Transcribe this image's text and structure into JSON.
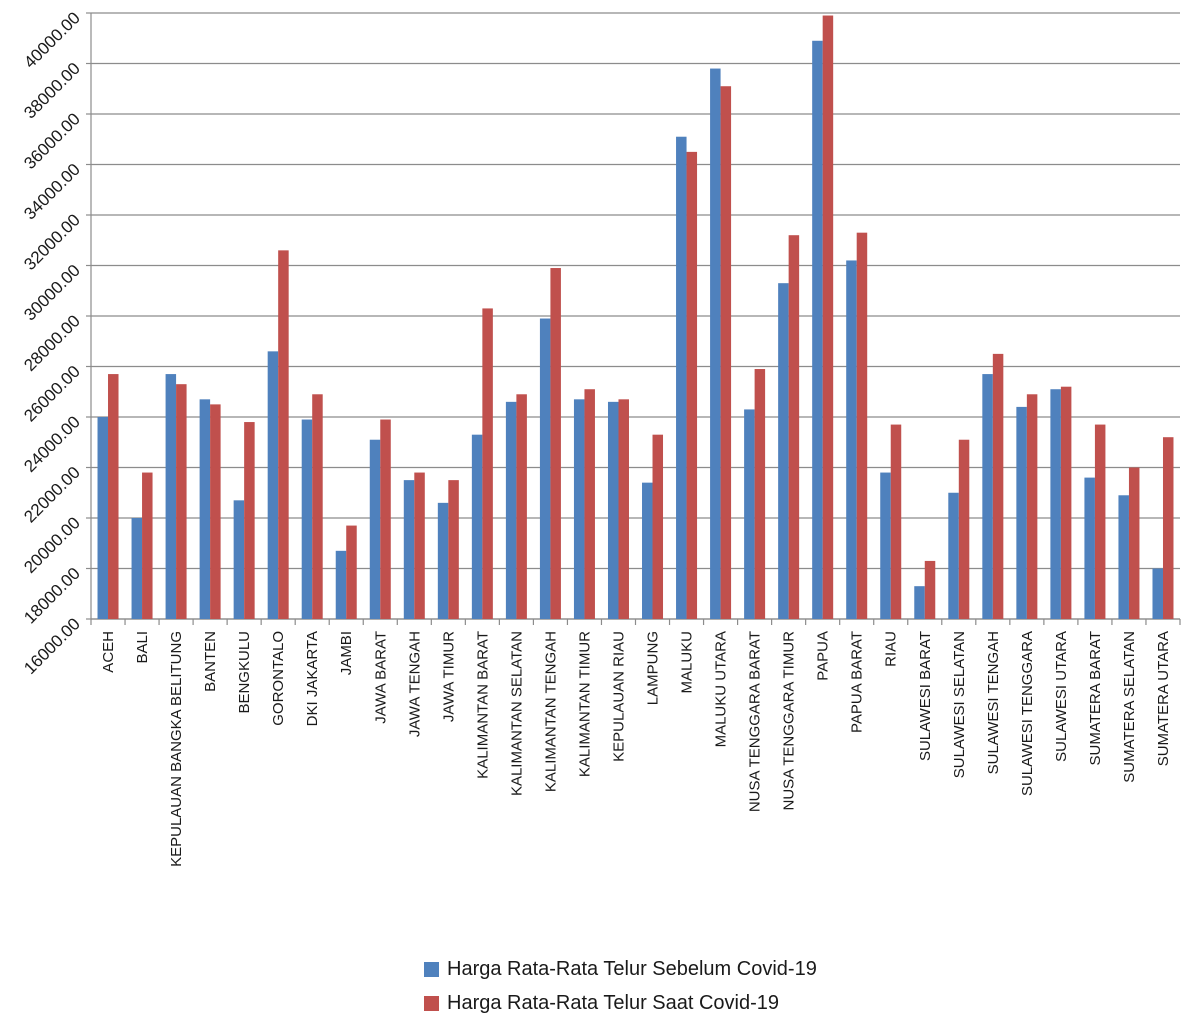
{
  "chart_data": {
    "type": "bar",
    "title": "",
    "xlabel": "",
    "ylabel": "",
    "ylim": [
      16000,
      40000
    ],
    "y_ticks": [
      "16000.00",
      "18000.00",
      "20000.00",
      "22000.00",
      "24000.00",
      "26000.00",
      "28000.00",
      "30000.00",
      "32000.00",
      "34000.00",
      "36000.00",
      "38000.00",
      "40000.00"
    ],
    "y_tick_values": [
      16000,
      18000,
      20000,
      22000,
      24000,
      26000,
      28000,
      30000,
      32000,
      34000,
      36000,
      38000,
      40000
    ],
    "grid": true,
    "legend_position": "bottom",
    "categories": [
      "ACEH",
      "BALI",
      "KEPULAUAN BANGKA BELITUNG",
      "BANTEN",
      "BENGKULU",
      "GORONTALO",
      "DKI JAKARTA",
      "JAMBI",
      "JAWA BARAT",
      "JAWA TENGAH",
      "JAWA TIMUR",
      "KALIMANTAN BARAT",
      "KALIMANTAN SELATAN",
      "KALIMANTAN TENGAH",
      "KALIMANTAN TIMUR",
      "KEPULAUAN RIAU",
      "LAMPUNG",
      "MALUKU",
      "MALUKU UTARA",
      "NUSA TENGGARA BARAT",
      "NUSA TENGGARA TIMUR",
      "PAPUA",
      "PAPUA BARAT",
      "RIAU",
      "SULAWESI BARAT",
      "SULAWESI SELATAN",
      "SULAWESI TENGAH",
      "SULAWESI TENGGARA",
      "SULAWESI UTARA",
      "SUMATERA BARAT",
      "SUMATERA SELATAN",
      "SUMATERA UTARA"
    ],
    "series": [
      {
        "name": "Harga Rata-Rata Telur Sebelum Covid-19",
        "color": "#4F81BD",
        "values": [
          24000,
          20000,
          25700,
          24700,
          20700,
          26600,
          23900,
          18700,
          23100,
          21500,
          20600,
          23300,
          24600,
          27900,
          24700,
          24600,
          21400,
          35100,
          37800,
          24300,
          29300,
          38900,
          30200,
          21800,
          17300,
          21000,
          25700,
          24400,
          25100,
          21600,
          20900,
          18000
        ]
      },
      {
        "name": "Harga Rata-Rata Telur Saat Covid-19",
        "color": "#C0504D",
        "values": [
          25700,
          21800,
          25300,
          24500,
          23800,
          30600,
          24900,
          19700,
          23900,
          21800,
          21500,
          28300,
          24900,
          29900,
          25100,
          24700,
          23300,
          34500,
          37100,
          25900,
          31200,
          39900,
          31300,
          23700,
          18300,
          23100,
          26500,
          24900,
          25200,
          23700,
          22000,
          23200
        ]
      }
    ]
  }
}
